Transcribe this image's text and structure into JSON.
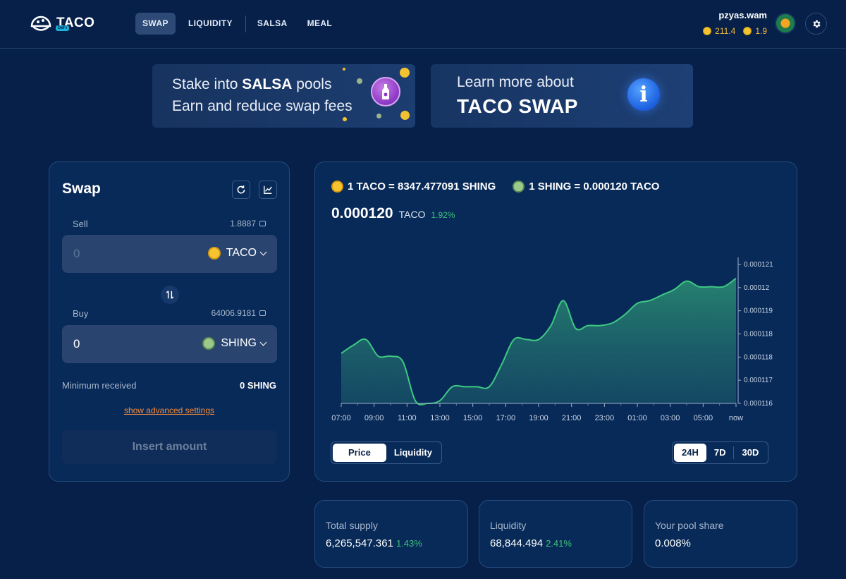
{
  "header": {
    "logo_text": "TACO",
    "logo_badge": "DeFi",
    "nav": [
      {
        "label": "SWAP",
        "active": true
      },
      {
        "label": "LIQUIDITY",
        "active": false
      },
      {
        "label": "SALSA",
        "active": false
      },
      {
        "label": "MEAL",
        "active": false
      }
    ],
    "user": {
      "name": "pzyas.wam",
      "balance_1": "211.4",
      "balance_2": "1.9"
    },
    "icons": {
      "settings": "gear-icon",
      "avatar": "avatar"
    }
  },
  "banners": {
    "salsa": {
      "line1_prefix": "Stake into ",
      "line1_bold": "SALSA",
      "line1_suffix": " pools",
      "line2": "Earn and reduce swap fees"
    },
    "learn": {
      "line1": "Learn more about",
      "line2": "TACO SWAP",
      "icon": "i"
    }
  },
  "swap": {
    "title": "Swap",
    "sell": {
      "label": "Sell",
      "balance": "1.8887",
      "value": "0",
      "token": "TACO"
    },
    "buy": {
      "label": "Buy",
      "balance": "64006.9181",
      "value": "0",
      "token": "SHING"
    },
    "min_received_label": "Minimum received",
    "min_received_value": "0 SHING",
    "advanced_link": "show advanced settings",
    "submit_label": "Insert amount"
  },
  "chart_panel": {
    "rate_1": "1 TACO = 8347.477091 SHING",
    "rate_2": "1 SHING = 0.000120 TACO",
    "price": "0.000120",
    "price_unit": "TACO",
    "price_change": "1.92%",
    "tabs": [
      {
        "label": "Price",
        "active": true
      },
      {
        "label": "Liquidity",
        "active": false
      }
    ],
    "ranges": [
      {
        "label": "24H",
        "active": true
      },
      {
        "label": "7D",
        "active": false
      },
      {
        "label": "30D",
        "active": false
      }
    ]
  },
  "chart_data": {
    "type": "area",
    "x_tick_labels": [
      "07:00",
      "09:00",
      "11:00",
      "13:00",
      "15:00",
      "17:00",
      "19:00",
      "21:00",
      "23:00",
      "01:00",
      "03:00",
      "05:00",
      "now"
    ],
    "y_tick_labels": [
      "0.000121",
      "0.00012",
      "0.000119",
      "0.000118",
      "0.000118",
      "0.000117",
      "0.000116"
    ],
    "ylim": [
      0.000116,
      0.000121
    ],
    "series": [
      {
        "values": [
          0.0001178,
          0.0001181,
          0.0001183,
          0.0001177,
          0.0001177,
          0.0001175,
          0.0001161,
          0.000116,
          0.0001161,
          0.0001166,
          0.0001166,
          0.0001166,
          0.0001166,
          0.0001174,
          0.0001183,
          0.0001183,
          0.0001183,
          0.0001188,
          0.0001197,
          0.0001187,
          0.0001188,
          0.0001188,
          0.0001189,
          0.0001192,
          0.0001196,
          0.0001197,
          0.0001199,
          0.0001201,
          0.0001204,
          0.0001202,
          0.0001202,
          0.0001202,
          0.0001205
        ]
      }
    ],
    "color": "#3ec983",
    "grid": false,
    "legend": "none"
  },
  "stats": [
    {
      "label": "Total supply",
      "value": "6,265,547.361",
      "change": "1.43%"
    },
    {
      "label": "Liquidity",
      "value": "68,844.494",
      "change": "2.41%"
    },
    {
      "label": "Your pool share",
      "value": "0.008%",
      "change": ""
    }
  ]
}
